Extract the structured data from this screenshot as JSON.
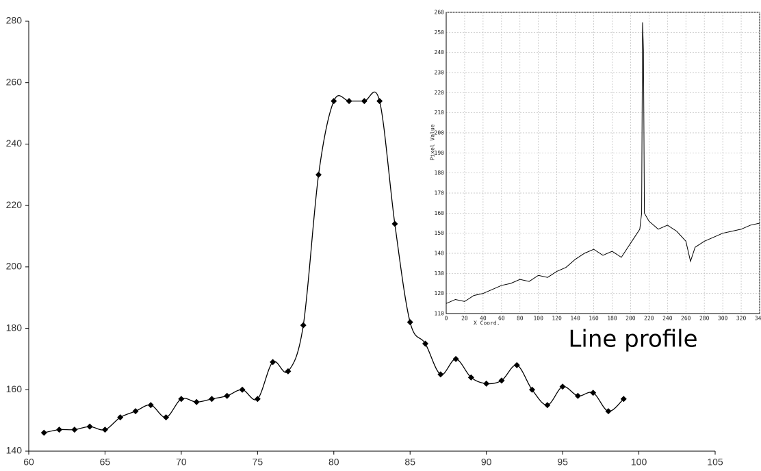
{
  "chart_data": [
    {
      "type": "line",
      "smooth": true,
      "marker": "diamond",
      "color": "#000000",
      "grid": false,
      "x": [
        61,
        62,
        63,
        64,
        65,
        66,
        67,
        68,
        69,
        70,
        71,
        72,
        73,
        74,
        75,
        76,
        77,
        78,
        79,
        80,
        81,
        82,
        83,
        84,
        85,
        86,
        87,
        88,
        89,
        90,
        91,
        92,
        93,
        94,
        95,
        96,
        97,
        98,
        99
      ],
      "series": [
        {
          "values": [
            146,
            147,
            147,
            148,
            147,
            151,
            153,
            155,
            151,
            157,
            156,
            157,
            158,
            160,
            157,
            169,
            166,
            181,
            230,
            254,
            254,
            254,
            254,
            214,
            182,
            175,
            165,
            170,
            164,
            162,
            163,
            168,
            160,
            155,
            161,
            158,
            159,
            153,
            157
          ]
        }
      ],
      "xlim": [
        60,
        105
      ],
      "xticks": [
        60,
        65,
        70,
        75,
        80,
        85,
        90,
        95,
        100,
        105
      ],
      "ylim": [
        140,
        280
      ],
      "yticks": [
        140,
        160,
        180,
        200,
        220,
        240,
        260,
        280
      ]
    },
    {
      "type": "line",
      "smooth": false,
      "marker": "none",
      "color": "#000000",
      "grid": true,
      "title": "Line profile",
      "xlabel": "X Coord.",
      "ylabel": "Pixel Value",
      "x": [
        0,
        10,
        20,
        30,
        40,
        50,
        60,
        70,
        80,
        90,
        100,
        110,
        120,
        130,
        140,
        150,
        160,
        170,
        180,
        190,
        200,
        210,
        212,
        213,
        214,
        215,
        220,
        230,
        240,
        250,
        260,
        265,
        270,
        280,
        290,
        300,
        310,
        320,
        330,
        340
      ],
      "series": [
        {
          "values": [
            115,
            117,
            116,
            119,
            120,
            122,
            124,
            125,
            127,
            126,
            129,
            128,
            131,
            133,
            137,
            140,
            142,
            139,
            141,
            138,
            145,
            152,
            160,
            255,
            241,
            160,
            156,
            152,
            154,
            151,
            146,
            136,
            143,
            146,
            148,
            150,
            151,
            152,
            154,
            155
          ]
        }
      ],
      "xlim": [
        0,
        340
      ],
      "xticks": [
        0,
        20,
        40,
        60,
        80,
        100,
        120,
        140,
        160,
        180,
        200,
        220,
        240,
        260,
        280,
        300,
        320,
        340
      ],
      "ylim": [
        110,
        260
      ],
      "yticks": [
        110,
        120,
        130,
        140,
        150,
        160,
        170,
        180,
        190,
        200,
        210,
        220,
        230,
        240,
        250,
        260
      ]
    }
  ]
}
